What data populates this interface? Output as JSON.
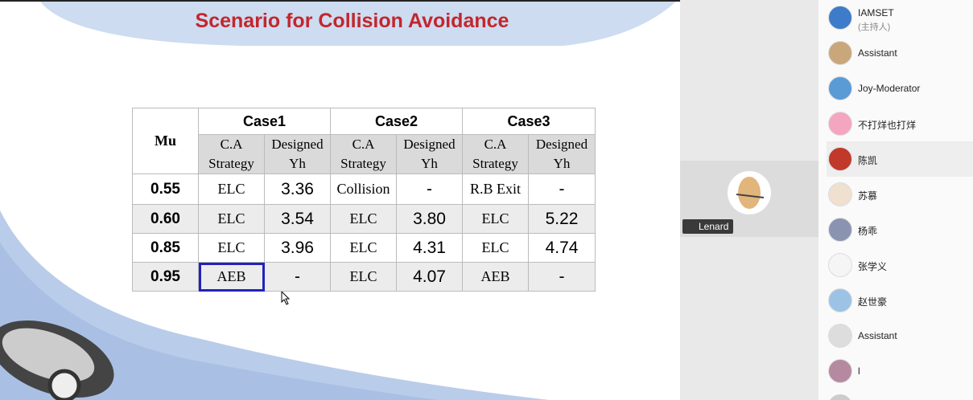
{
  "slide": {
    "title": "Scenario for Collision Avoidance",
    "table": {
      "mu_header": "Mu",
      "cases": [
        "Case1",
        "Case2",
        "Case3"
      ],
      "subheaders": [
        [
          "C.A",
          "Strategy"
        ],
        [
          "Designed",
          "Yh"
        ],
        [
          "C.A",
          "Strategy"
        ],
        [
          "Designed",
          "Yh"
        ],
        [
          "C.A",
          "Strategy"
        ],
        [
          "Designed",
          "Yh"
        ]
      ],
      "rows": [
        [
          "0.55",
          "ELC",
          "3.36",
          "Collision",
          "-",
          "R.B Exit",
          "-"
        ],
        [
          "0.60",
          "ELC",
          "3.54",
          "ELC",
          "3.80",
          "ELC",
          "5.22"
        ],
        [
          "0.85",
          "ELC",
          "3.96",
          "ELC",
          "4.31",
          "ELC",
          "4.74"
        ],
        [
          "0.95",
          "AEB",
          "-",
          "ELC",
          "4.07",
          "AEB",
          "-"
        ]
      ]
    }
  },
  "video_tile": {
    "name": "Lenard"
  },
  "participants": [
    {
      "name": "IAMSET",
      "role": "(主持人)"
    },
    {
      "name": "Assistant"
    },
    {
      "name": "Joy-Moderator"
    },
    {
      "name": "不打烊也打烊"
    },
    {
      "name": "陈凯"
    },
    {
      "name": "苏慕"
    },
    {
      "name": "杨乖"
    },
    {
      "name": "张学义"
    },
    {
      "name": "赵世豪"
    },
    {
      "name": "Assistant"
    },
    {
      "name": "l"
    }
  ]
}
